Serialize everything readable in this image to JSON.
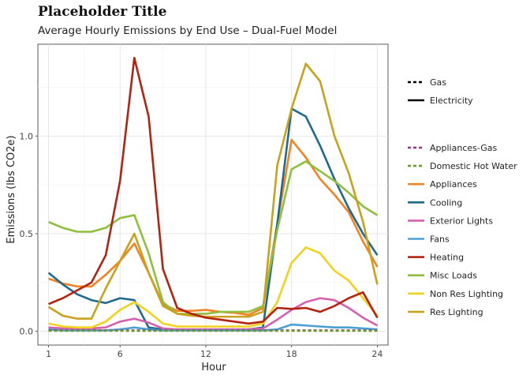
{
  "chart_data": {
    "type": "line",
    "title": "Placeholder Title",
    "subtitle": "Average Hourly Emissions by End Use – Dual-Fuel Model",
    "xlabel": "Hour",
    "ylabel": "Emissions (lbs CO2e)",
    "xlim": [
      0.25,
      24.75
    ],
    "ylim": [
      -0.07,
      1.47
    ],
    "xticks": [
      1,
      6,
      12,
      18,
      24
    ],
    "xtick_labels": [
      "1",
      "6",
      "12",
      "18",
      "24"
    ],
    "yticks": [
      0,
      0.5,
      1
    ],
    "ytick_labels": [
      "0.0",
      "0.5",
      "1.0"
    ],
    "grid": true,
    "legend_position": "right",
    "fuel_legend": [
      {
        "name": "Gas",
        "dash": "dashed"
      },
      {
        "name": "Electricity",
        "dash": "solid"
      }
    ],
    "x": [
      1,
      2,
      3,
      4,
      5,
      6,
      7,
      8,
      9,
      10,
      11,
      12,
      13,
      14,
      15,
      16,
      17,
      18,
      19,
      20,
      21,
      22,
      23,
      24
    ],
    "series": [
      {
        "name": "Appliances-Gas",
        "color": "#9b2f8c",
        "dash": "dashed",
        "values": [
          0.005,
          0.005,
          0.005,
          0.005,
          0.005,
          0.005,
          0.005,
          0.005,
          0.005,
          0.005,
          0.005,
          0.005,
          0.005,
          0.005,
          0.005,
          0.005,
          0.005,
          0.005,
          0.005,
          0.005,
          0.005,
          0.005,
          0.005,
          0.005
        ]
      },
      {
        "name": "Domestic Hot Water",
        "color": "#6d9a2a",
        "dash": "dashed",
        "values": [
          0.003,
          0.003,
          0.003,
          0.003,
          0.003,
          0.003,
          0.003,
          0.003,
          0.003,
          0.003,
          0.003,
          0.003,
          0.003,
          0.003,
          0.003,
          0.003,
          0.003,
          0.003,
          0.003,
          0.003,
          0.003,
          0.003,
          0.003,
          0.003
        ]
      },
      {
        "name": "Appliances",
        "color": "#f58220",
        "dash": "solid",
        "values": [
          0.27,
          0.245,
          0.23,
          0.23,
          0.29,
          0.36,
          0.45,
          0.3,
          0.14,
          0.105,
          0.105,
          0.11,
          0.1,
          0.095,
          0.085,
          0.12,
          0.55,
          0.98,
          0.89,
          0.78,
          0.7,
          0.61,
          0.46,
          0.33
        ]
      },
      {
        "name": "Cooling",
        "color": "#1f6a8e",
        "dash": "solid",
        "values": [
          0.3,
          0.24,
          0.19,
          0.16,
          0.145,
          0.17,
          0.16,
          0.02,
          0.01,
          0.01,
          0.01,
          0.01,
          0.01,
          0.01,
          0.01,
          0.02,
          0.55,
          1.14,
          1.1,
          0.95,
          0.78,
          0.63,
          0.5,
          0.39
        ]
      },
      {
        "name": "Exterior Lights",
        "color": "#d65fae",
        "dash": "solid",
        "values": [
          0.02,
          0.015,
          0.015,
          0.015,
          0.02,
          0.05,
          0.065,
          0.045,
          0.015,
          0.01,
          0.01,
          0.01,
          0.01,
          0.01,
          0.01,
          0.015,
          0.06,
          0.11,
          0.15,
          0.17,
          0.16,
          0.12,
          0.07,
          0.03
        ]
      },
      {
        "name": "Fans",
        "color": "#4a9fd5",
        "dash": "solid",
        "values": [
          0.01,
          0.005,
          0.005,
          0.005,
          0.005,
          0.01,
          0.02,
          0.01,
          0.005,
          0.005,
          0.005,
          0.005,
          0.005,
          0.005,
          0.005,
          0.005,
          0.01,
          0.035,
          0.03,
          0.025,
          0.02,
          0.02,
          0.015,
          0.01
        ]
      },
      {
        "name": "Heating",
        "color": "#b5220f",
        "dash": "solid",
        "values": [
          0.14,
          0.17,
          0.21,
          0.25,
          0.39,
          0.77,
          1.4,
          1.1,
          0.32,
          0.12,
          0.09,
          0.07,
          0.06,
          0.05,
          0.04,
          0.05,
          0.12,
          0.115,
          0.12,
          0.1,
          0.13,
          0.17,
          0.2,
          0.07
        ]
      },
      {
        "name": "Misc Loads",
        "color": "#8ebf3d",
        "dash": "solid",
        "values": [
          0.56,
          0.53,
          0.51,
          0.51,
          0.53,
          0.58,
          0.595,
          0.4,
          0.15,
          0.09,
          0.09,
          0.09,
          0.1,
          0.1,
          0.1,
          0.13,
          0.52,
          0.83,
          0.87,
          0.82,
          0.77,
          0.71,
          0.64,
          0.595
        ]
      },
      {
        "name": "Non Res Lighting",
        "color": "#f2d21b",
        "dash": "solid",
        "values": [
          0.04,
          0.025,
          0.02,
          0.02,
          0.05,
          0.11,
          0.15,
          0.1,
          0.04,
          0.025,
          0.025,
          0.025,
          0.025,
          0.025,
          0.025,
          0.04,
          0.15,
          0.35,
          0.43,
          0.4,
          0.31,
          0.26,
          0.17,
          0.08
        ]
      },
      {
        "name": "Res Lighting",
        "color": "#c9a11a",
        "dash": "solid",
        "values": [
          0.125,
          0.08,
          0.065,
          0.065,
          0.22,
          0.36,
          0.5,
          0.3,
          0.13,
          0.09,
          0.08,
          0.075,
          0.075,
          0.075,
          0.075,
          0.1,
          0.85,
          1.14,
          1.37,
          1.28,
          1.0,
          0.81,
          0.56,
          0.24
        ]
      }
    ]
  }
}
